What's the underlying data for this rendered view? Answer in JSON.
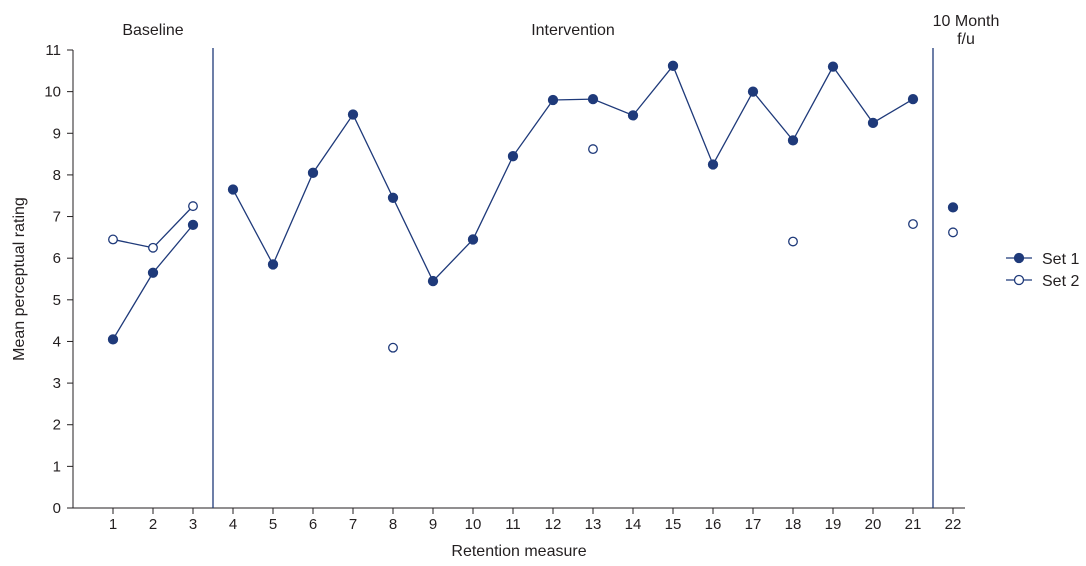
{
  "chart_data": {
    "type": "line",
    "xlabel": "Retention measure",
    "ylabel": "Mean perceptual rating",
    "ylim": [
      0,
      11
    ],
    "xlim": [
      1,
      22
    ],
    "x_ticks": [
      "1",
      "2",
      "3",
      "4",
      "5",
      "6",
      "7",
      "8",
      "9",
      "10",
      "11",
      "12",
      "13",
      "14",
      "15",
      "16",
      "17",
      "18",
      "19",
      "20",
      "21",
      "22"
    ],
    "y_ticks": [
      "0",
      "1",
      "2",
      "3",
      "4",
      "5",
      "6",
      "7",
      "8",
      "9",
      "10",
      "11"
    ],
    "grid": false,
    "legend_position": "right",
    "phases": [
      {
        "label": "Baseline",
        "start": 1,
        "end": 3
      },
      {
        "label": "Intervention",
        "start": 4,
        "end": 21
      },
      {
        "label": "10 Month f/u",
        "start": 22,
        "end": 22
      }
    ],
    "phase_boundaries": [
      3.5,
      21.5
    ],
    "series": [
      {
        "name": "Set 1",
        "marker": "filled-circle",
        "color": "#1f3a7a",
        "x": [
          1,
          2,
          3,
          4,
          5,
          6,
          7,
          8,
          9,
          10,
          11,
          12,
          13,
          14,
          15,
          16,
          17,
          18,
          19,
          20,
          21,
          22
        ],
        "values": [
          4.05,
          5.65,
          6.8,
          7.65,
          5.85,
          8.05,
          9.45,
          7.45,
          5.45,
          6.45,
          8.45,
          9.8,
          9.82,
          9.43,
          10.62,
          8.25,
          10.0,
          8.83,
          10.6,
          9.25,
          9.82,
          7.22
        ],
        "segments": [
          [
            1,
            3
          ],
          [
            4,
            21
          ]
        ]
      },
      {
        "name": "Set 2",
        "marker": "open-circle",
        "color": "#1f3a7a",
        "x": [
          1,
          2,
          3,
          8,
          13,
          18,
          21,
          22
        ],
        "values": [
          6.45,
          6.25,
          7.25,
          3.85,
          8.62,
          6.4,
          6.82,
          6.62
        ],
        "segments": [
          [
            1,
            3
          ]
        ]
      }
    ]
  }
}
